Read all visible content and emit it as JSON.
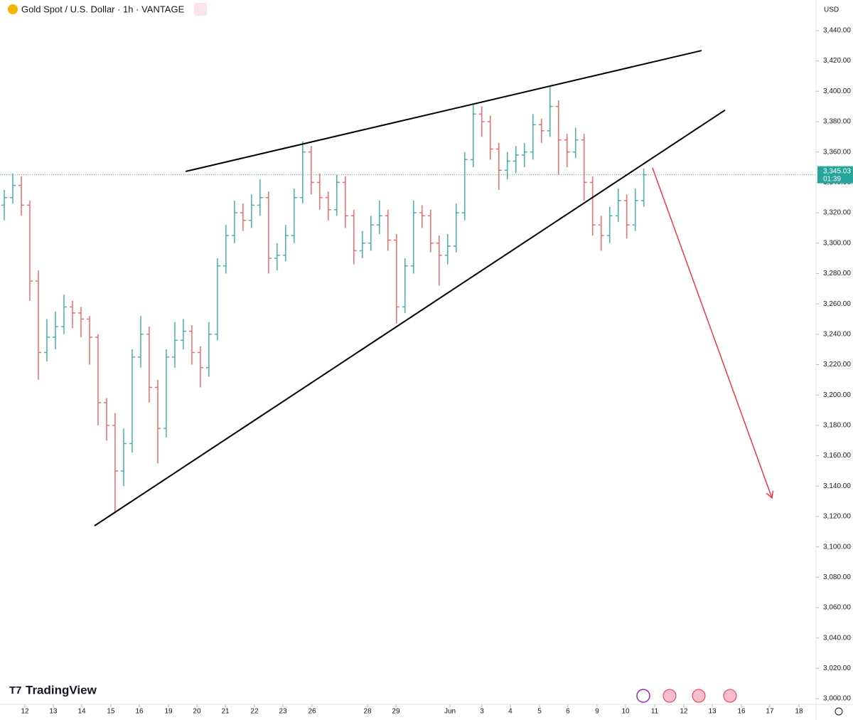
{
  "chart_data": {
    "type": "ohlc",
    "title": "Gold Spot / U.S. Dollar · 1h · VANTAGE",
    "currency": "USD",
    "brand": "TradingView",
    "up_color": "#26a69a",
    "down_color": "#ef5350",
    "open": [
      3325,
      3330,
      3338,
      3325,
      3275,
      3228,
      3238,
      3245,
      3258,
      3254,
      3250,
      3238,
      3195,
      3180,
      3150,
      3168,
      3225,
      3240,
      3205,
      3178,
      3225,
      3236,
      3242,
      3228,
      3218,
      3240,
      3285,
      3305,
      3320,
      3315,
      3325,
      3330,
      3290,
      3292,
      3305,
      3330,
      3360,
      3340,
      3330,
      3322,
      3340,
      3318,
      3295,
      3300,
      3312,
      3318,
      3302,
      3258,
      3285,
      3320,
      3318,
      3300,
      3292,
      3298,
      3320,
      3355,
      3385,
      3380,
      3362,
      3348,
      3354,
      3358,
      3360,
      3378,
      3374,
      3390,
      3368,
      3360,
      3368,
      3340,
      3312,
      3305,
      3318,
      3328,
      3312,
      3328
    ],
    "high": [
      3335,
      3346,
      3344,
      3328,
      3282,
      3250,
      3255,
      3266,
      3262,
      3258,
      3252,
      3240,
      3198,
      3188,
      3178,
      3230,
      3252,
      3245,
      3210,
      3230,
      3248,
      3250,
      3246,
      3232,
      3248,
      3290,
      3312,
      3328,
      3326,
      3332,
      3342,
      3334,
      3300,
      3312,
      3336,
      3367,
      3364,
      3346,
      3334,
      3345,
      3344,
      3322,
      3308,
      3318,
      3328,
      3322,
      3306,
      3290,
      3328,
      3325,
      3322,
      3305,
      3306,
      3326,
      3360,
      3392,
      3390,
      3384,
      3366,
      3360,
      3364,
      3366,
      3385,
      3382,
      3404,
      3394,
      3372,
      3376,
      3372,
      3344,
      3318,
      3324,
      3336,
      3332,
      3336,
      3349
    ],
    "low": [
      3315,
      3326,
      3318,
      3262,
      3210,
      3222,
      3230,
      3240,
      3244,
      3238,
      3220,
      3180,
      3170,
      3122,
      3140,
      3162,
      3218,
      3195,
      3155,
      3172,
      3218,
      3230,
      3220,
      3205,
      3212,
      3236,
      3280,
      3300,
      3308,
      3310,
      3318,
      3280,
      3282,
      3288,
      3300,
      3326,
      3332,
      3322,
      3315,
      3318,
      3310,
      3286,
      3290,
      3295,
      3306,
      3295,
      3247,
      3254,
      3280,
      3310,
      3294,
      3272,
      3286,
      3294,
      3315,
      3350,
      3370,
      3355,
      3335,
      3342,
      3346,
      3350,
      3355,
      3366,
      3370,
      3345,
      3350,
      3356,
      3328,
      3305,
      3295,
      3300,
      3314,
      3303,
      3308,
      3324
    ],
    "close": [
      3330,
      3338,
      3325,
      3275,
      3228,
      3238,
      3245,
      3258,
      3254,
      3250,
      3238,
      3195,
      3180,
      3150,
      3168,
      3225,
      3240,
      3205,
      3178,
      3225,
      3236,
      3242,
      3228,
      3218,
      3240,
      3285,
      3305,
      3320,
      3315,
      3325,
      3330,
      3290,
      3292,
      3305,
      3330,
      3360,
      3340,
      3330,
      3322,
      3340,
      3318,
      3295,
      3300,
      3312,
      3318,
      3302,
      3258,
      3285,
      3320,
      3318,
      3300,
      3292,
      3298,
      3320,
      3355,
      3385,
      3380,
      3362,
      3348,
      3354,
      3358,
      3360,
      3378,
      3374,
      3390,
      3368,
      3360,
      3368,
      3340,
      3312,
      3305,
      3318,
      3328,
      3312,
      3328,
      3345.03
    ],
    "last_price": {
      "value": 3345.03,
      "label": "3,345.03"
    },
    "countdown": "01:39",
    "xlim": [
      -0.5,
      95.2
    ],
    "ylim": [
      2996.3,
      3460.1
    ],
    "xticks": [
      {
        "value": 2.42,
        "label": "12"
      },
      {
        "value": 5.75,
        "label": "13"
      },
      {
        "value": 9.09,
        "label": "14"
      },
      {
        "value": 12.5,
        "label": "15"
      },
      {
        "value": 15.84,
        "label": "16"
      },
      {
        "value": 19.26,
        "label": "19"
      },
      {
        "value": 22.59,
        "label": "20"
      },
      {
        "value": 25.93,
        "label": "21"
      },
      {
        "value": 29.34,
        "label": "22"
      },
      {
        "value": 32.68,
        "label": "23"
      },
      {
        "value": 36.1,
        "label": "26"
      },
      {
        "value": 42.6,
        "label": "28"
      },
      {
        "value": 45.93,
        "label": "29"
      },
      {
        "value": 52.27,
        "label": "Jun"
      },
      {
        "value": 56.02,
        "label": "3"
      },
      {
        "value": 59.35,
        "label": "4"
      },
      {
        "value": 62.77,
        "label": "5"
      },
      {
        "value": 66.1,
        "label": "6"
      },
      {
        "value": 69.52,
        "label": "9"
      },
      {
        "value": 72.86,
        "label": "10"
      },
      {
        "value": 76.28,
        "label": "11"
      },
      {
        "value": 79.69,
        "label": "12"
      },
      {
        "value": 83.03,
        "label": "13"
      },
      {
        "value": 86.45,
        "label": "16"
      },
      {
        "value": 89.78,
        "label": "17"
      },
      {
        "value": 93.2,
        "label": "18"
      }
    ],
    "yticks": [
      {
        "value": 3000,
        "label": "3,000.00"
      },
      {
        "value": 3020,
        "label": "3,020.00"
      },
      {
        "value": 3040,
        "label": "3,040.00"
      },
      {
        "value": 3060,
        "label": "3,060.00"
      },
      {
        "value": 3080,
        "label": "3,080.00"
      },
      {
        "value": 3100,
        "label": "3,100.00"
      },
      {
        "value": 3120,
        "label": "3,120.00"
      },
      {
        "value": 3140,
        "label": "3,140.00"
      },
      {
        "value": 3160,
        "label": "3,160.00"
      },
      {
        "value": 3180,
        "label": "3,180.00"
      },
      {
        "value": 3200,
        "label": "3,200.00"
      },
      {
        "value": 3220,
        "label": "3,220.00"
      },
      {
        "value": 3240,
        "label": "3,240.00"
      },
      {
        "value": 3260,
        "label": "3,260.00"
      },
      {
        "value": 3280,
        "label": "3,280.00"
      },
      {
        "value": 3300,
        "label": "3,300.00"
      },
      {
        "value": 3320,
        "label": "3,320.00"
      },
      {
        "value": 3340,
        "label": "3,340.00"
      },
      {
        "value": 3360,
        "label": "3,360.00"
      },
      {
        "value": 3380,
        "label": "3,380.00"
      },
      {
        "value": 3400,
        "label": "3,400.00"
      },
      {
        "value": 3420,
        "label": "3,420.00"
      },
      {
        "value": 3440,
        "label": "3,440.00"
      }
    ],
    "trendlines": [
      {
        "color": "#000000",
        "x": [
          21.26,
          81.78
        ],
        "y": [
          3347.2,
          3426.8
        ]
      },
      {
        "color": "#000000",
        "x": [
          10.59,
          84.53
        ],
        "y": [
          3113.9,
          3387.6
        ]
      }
    ],
    "arrow": {
      "color": "#f23645",
      "x": [
        76.02,
        90.03
      ],
      "y": [
        3349.6,
        3132.2
      ]
    }
  }
}
